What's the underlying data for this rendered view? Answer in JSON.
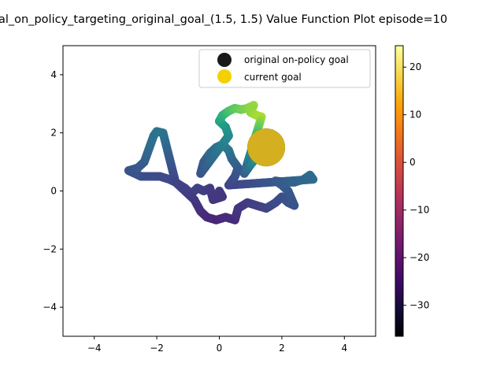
{
  "chart_data": {
    "type": "scatter",
    "title": "al_on_policy_targeting_original_goal_(1.5, 1.5) Value Function Plot episode=10",
    "xlabel": "",
    "ylabel": "",
    "xlim": [
      -5,
      5
    ],
    "ylim": [
      -5,
      5
    ],
    "xticks": [
      "−4",
      "−2",
      "0",
      "2",
      "4"
    ],
    "yticks": [
      "−4",
      "−2",
      "0",
      "2",
      "4"
    ],
    "grid": false,
    "legend_placement": "top-right",
    "legend": [
      {
        "label": "original on-policy goal",
        "color": "#1a1a1a"
      },
      {
        "label": "current goal",
        "color": "#f5d000"
      }
    ],
    "colorbar": {
      "colormap": "inferno",
      "vmin": -36.5,
      "vmax": 24.5,
      "ticks": [
        "20",
        "10",
        "0",
        "−10",
        "−20",
        "−30"
      ],
      "tick_values": [
        20,
        10,
        0,
        -10,
        -20,
        -30
      ]
    },
    "goals": [
      {
        "name": "original on-policy goal",
        "x": 1.5,
        "y": 1.5,
        "color": "#1a1a1a"
      },
      {
        "name": "current goal",
        "x": 1.5,
        "y": 1.5,
        "color": "#d4b020"
      }
    ],
    "trajectory_path": [
      {
        "x": 0.0,
        "y": 0.0,
        "v": -26
      },
      {
        "x": 0.1,
        "y": -0.2,
        "v": -27
      },
      {
        "x": -0.2,
        "y": -0.3,
        "v": -27
      },
      {
        "x": -0.3,
        "y": 0.1,
        "v": -26
      },
      {
        "x": -0.5,
        "y": 0.0,
        "v": -26
      },
      {
        "x": -0.7,
        "y": 0.1,
        "v": -25
      },
      {
        "x": -0.9,
        "y": -0.1,
        "v": -25
      },
      {
        "x": -1.1,
        "y": 0.1,
        "v": -24
      },
      {
        "x": -1.4,
        "y": 0.3,
        "v": -24
      },
      {
        "x": -1.6,
        "y": 0.4,
        "v": -23
      },
      {
        "x": -1.9,
        "y": 0.5,
        "v": -23
      },
      {
        "x": -2.2,
        "y": 0.5,
        "v": -22
      },
      {
        "x": -2.5,
        "y": 0.5,
        "v": -22
      },
      {
        "x": -2.7,
        "y": 0.6,
        "v": -21
      },
      {
        "x": -2.9,
        "y": 0.7,
        "v": -21
      },
      {
        "x": -2.6,
        "y": 0.8,
        "v": -20
      },
      {
        "x": -2.4,
        "y": 1.0,
        "v": -19
      },
      {
        "x": -2.3,
        "y": 1.3,
        "v": -17
      },
      {
        "x": -2.2,
        "y": 1.6,
        "v": -15
      },
      {
        "x": -2.1,
        "y": 1.9,
        "v": -14
      },
      {
        "x": -2.0,
        "y": 2.05,
        "v": -13
      },
      {
        "x": -1.8,
        "y": 2.0,
        "v": -13
      },
      {
        "x": -1.4,
        "y": 0.3,
        "v": -24
      },
      {
        "x": -0.8,
        "y": -0.3,
        "v": -26
      },
      {
        "x": -0.6,
        "y": -0.7,
        "v": -28
      },
      {
        "x": -0.4,
        "y": -0.9,
        "v": -29
      },
      {
        "x": -0.1,
        "y": -1.0,
        "v": -30
      },
      {
        "x": 0.2,
        "y": -0.9,
        "v": -29
      },
      {
        "x": 0.5,
        "y": -1.0,
        "v": -29
      },
      {
        "x": 0.6,
        "y": -0.6,
        "v": -27
      },
      {
        "x": 0.9,
        "y": -0.4,
        "v": -26
      },
      {
        "x": 1.2,
        "y": -0.5,
        "v": -25
      },
      {
        "x": 1.5,
        "y": -0.6,
        "v": -24
      },
      {
        "x": 1.8,
        "y": -0.4,
        "v": -23
      },
      {
        "x": 2.0,
        "y": -0.2,
        "v": -22
      },
      {
        "x": 2.2,
        "y": -0.4,
        "v": -21
      },
      {
        "x": 2.4,
        "y": -0.5,
        "v": -21
      },
      {
        "x": 2.2,
        "y": 0.0,
        "v": -20
      },
      {
        "x": 2.0,
        "y": 0.2,
        "v": -19
      },
      {
        "x": 1.8,
        "y": 0.35,
        "v": -18
      },
      {
        "x": 2.1,
        "y": 0.3,
        "v": -18
      },
      {
        "x": 2.4,
        "y": 0.3,
        "v": -17
      },
      {
        "x": 2.7,
        "y": 0.4,
        "v": -16
      },
      {
        "x": 2.9,
        "y": 0.55,
        "v": -15
      },
      {
        "x": 3.0,
        "y": 0.4,
        "v": -15
      },
      {
        "x": 0.3,
        "y": 0.2,
        "v": -24
      },
      {
        "x": 0.5,
        "y": 0.5,
        "v": -22
      },
      {
        "x": 0.6,
        "y": 0.8,
        "v": -20
      },
      {
        "x": 0.4,
        "y": 1.1,
        "v": -17
      },
      {
        "x": 0.3,
        "y": 1.4,
        "v": -14
      },
      {
        "x": 0.1,
        "y": 1.6,
        "v": -11
      },
      {
        "x": -0.1,
        "y": 1.5,
        "v": -12
      },
      {
        "x": -0.3,
        "y": 1.3,
        "v": -15
      },
      {
        "x": -0.5,
        "y": 1.0,
        "v": -18
      },
      {
        "x": -0.6,
        "y": 0.6,
        "v": -21
      },
      {
        "x": 0.3,
        "y": 1.9,
        "v": -8
      },
      {
        "x": 0.2,
        "y": 2.2,
        "v": -5
      },
      {
        "x": 0.0,
        "y": 2.4,
        "v": -2
      },
      {
        "x": 0.1,
        "y": 2.6,
        "v": 2
      },
      {
        "x": 0.3,
        "y": 2.75,
        "v": 6
      },
      {
        "x": 0.5,
        "y": 2.85,
        "v": 9
      },
      {
        "x": 0.7,
        "y": 2.8,
        "v": 11
      },
      {
        "x": 0.9,
        "y": 2.85,
        "v": 13
      },
      {
        "x": 1.1,
        "y": 2.95,
        "v": 15
      },
      {
        "x": 1.0,
        "y": 2.7,
        "v": 14
      },
      {
        "x": 1.2,
        "y": 2.6,
        "v": 16
      },
      {
        "x": 1.35,
        "y": 2.55,
        "v": 17
      },
      {
        "x": 0.8,
        "y": 0.6,
        "v": -18
      },
      {
        "x": 1.0,
        "y": 0.9,
        "v": -12
      },
      {
        "x": 1.15,
        "y": 1.1,
        "v": -6
      }
    ]
  }
}
